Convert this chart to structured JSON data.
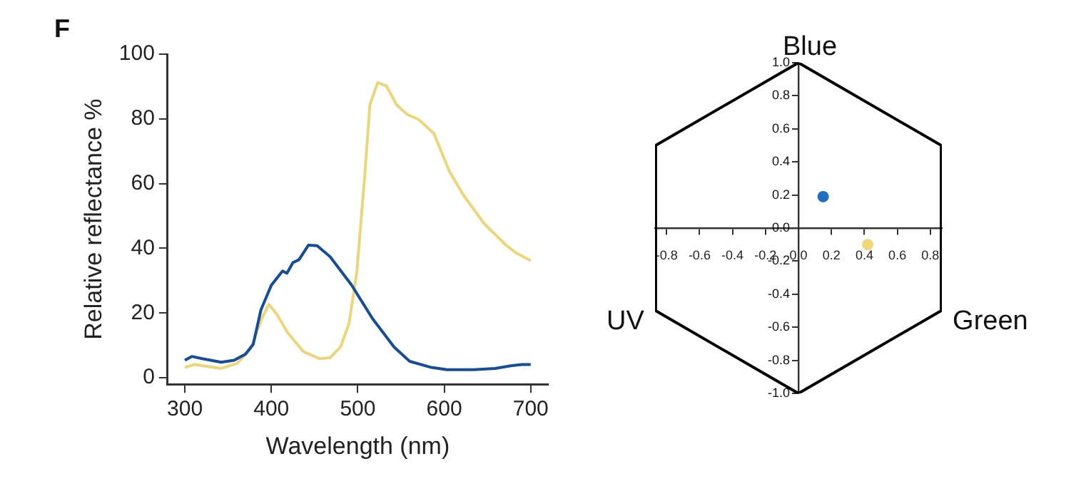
{
  "chart_data": [
    {
      "type": "line",
      "title": "F",
      "xlabel": "Wavelength (nm)",
      "ylabel": "Relative reflectance %",
      "xlim": [
        280,
        720
      ],
      "ylim": [
        -2,
        100
      ],
      "xticks": [
        300,
        400,
        500,
        600,
        700
      ],
      "yticks": [
        0,
        20,
        40,
        60,
        80,
        100
      ],
      "grid": false,
      "legend": false,
      "line_style": "solid",
      "series": [
        {
          "color": "#154d9a",
          "x": [
            300,
            308,
            320,
            342,
            357,
            370,
            379,
            388,
            400,
            413,
            418,
            425,
            432,
            443,
            453,
            468,
            493,
            517,
            542,
            560,
            585,
            603,
            634,
            659,
            677,
            690,
            700
          ],
          "values": [
            5.4,
            6.6,
            5.9,
            4.8,
            5.4,
            7.3,
            10.3,
            21,
            28.6,
            33,
            32.3,
            35.6,
            36.5,
            41,
            40.8,
            37.4,
            28.6,
            18.3,
            9.5,
            5.1,
            3.2,
            2.5,
            2.5,
            2.9,
            3.7,
            4.1,
            4.1
          ]
        },
        {
          "color": "#ecd67a",
          "x": [
            300,
            311,
            342,
            360,
            376,
            389,
            397,
            406,
            419,
            437,
            456,
            468,
            480,
            490,
            499,
            508,
            514,
            523,
            533,
            545,
            557,
            570,
            588,
            606,
            622,
            646,
            671,
            683,
            700
          ],
          "values": [
            3.2,
            4.1,
            2.9,
            4.4,
            8.8,
            18.3,
            22.7,
            19.8,
            13.9,
            8.1,
            5.9,
            6.2,
            9.5,
            16.9,
            33,
            62.3,
            84.3,
            91.2,
            90.2,
            84.3,
            81.4,
            79.9,
            75.5,
            63.8,
            56.5,
            47.7,
            41.1,
            38.6,
            36.2
          ]
        }
      ]
    },
    {
      "type": "scatter",
      "xlim": [
        -0.87,
        0.87
      ],
      "ylim": [
        -1,
        1
      ],
      "grid": false,
      "legend": false,
      "marker": "circle",
      "xticks": [
        {
          "value": -0.8,
          "label": "-0.8"
        },
        {
          "value": -0.6,
          "label": "-0.6"
        },
        {
          "value": -0.4,
          "label": "-0.4"
        },
        {
          "value": -0.2,
          "label": "-0.2"
        },
        {
          "value": 0,
          "label": "0.0"
        },
        {
          "value": 0.2,
          "label": "0.2"
        },
        {
          "value": 0.4,
          "label": "0.4"
        },
        {
          "value": 0.6,
          "label": "0.6"
        },
        {
          "value": 0.8,
          "label": "0.8"
        }
      ],
      "yticks": [
        {
          "value": -1,
          "label": "-1.0"
        },
        {
          "value": -0.8,
          "label": "-0.8"
        },
        {
          "value": -0.6,
          "label": "-0.6"
        },
        {
          "value": -0.4,
          "label": "-0.4"
        },
        {
          "value": -0.2,
          "label": "-0.2"
        },
        {
          "value": 0,
          "label": "0.0"
        },
        {
          "value": 0.2,
          "label": "0.2"
        },
        {
          "value": 0.4,
          "label": "0.4"
        },
        {
          "value": 0.6,
          "label": "0.6"
        },
        {
          "value": 0.8,
          "label": "0.8"
        },
        {
          "value": 1,
          "label": "1.0"
        }
      ],
      "annotations": [
        {
          "text": "Blue",
          "x": 0,
          "y": 1
        },
        {
          "text": "UV",
          "x": -0.866,
          "y": -0.5
        },
        {
          "text": "Green",
          "x": 0.866,
          "y": -0.5
        }
      ],
      "series": [
        {
          "type": "line",
          "marker": "none",
          "color": "#000000",
          "x": [
            0,
            0.866,
            0.866,
            0
          ],
          "values": [
            1,
            0.5,
            -0.5,
            -1
          ]
        },
        {
          "type": "line",
          "marker": "none",
          "color": "#000000",
          "x": [
            0,
            -0.866,
            -0.866,
            0
          ],
          "values": [
            1,
            0.5,
            -0.5,
            -1
          ]
        },
        {
          "color": "#1f6fc0",
          "x": [
            0.15
          ],
          "values": [
            0.19
          ]
        },
        {
          "color": "#f2d77a",
          "x": [
            0.42
          ],
          "values": [
            -0.1
          ]
        }
      ]
    }
  ]
}
